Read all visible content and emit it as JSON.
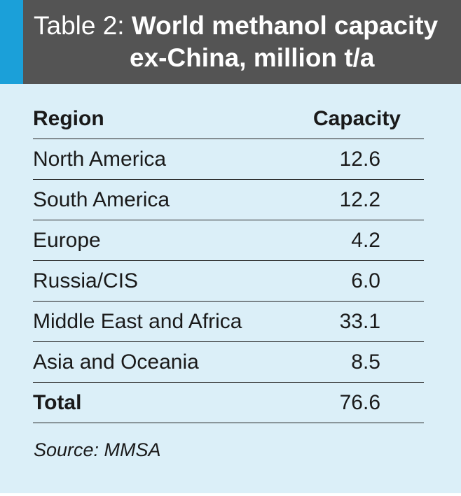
{
  "table": {
    "label": "Table 2:",
    "title_line1": "World methanol capacity",
    "title_line2": "ex-China, million t/a",
    "headers": {
      "region": "Region",
      "capacity": "Capacity"
    },
    "rows": [
      {
        "region": "North America",
        "capacity": "12.6"
      },
      {
        "region": "South America",
        "capacity": "12.2"
      },
      {
        "region": "Europe",
        "capacity": "4.2"
      },
      {
        "region": "Russia/CIS",
        "capacity": "6.0"
      },
      {
        "region": "Middle East and Africa",
        "capacity": "33.1"
      },
      {
        "region": "Asia and Oceania",
        "capacity": "8.5"
      }
    ],
    "total": {
      "region": "Total",
      "capacity": "76.6"
    },
    "source": "Source: MMSA"
  },
  "colors": {
    "header_bg": "#545454",
    "accent": "#1ba0d9",
    "body_bg": "#dbeff8"
  }
}
